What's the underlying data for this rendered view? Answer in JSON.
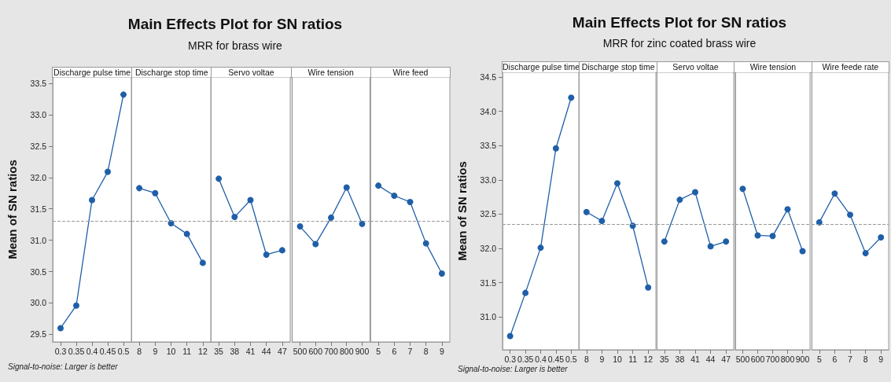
{
  "chart_data": [
    {
      "type": "other",
      "title": "Main Effects Plot for SN ratios",
      "subtitle": "MRR for brass wire"
    },
    {
      "type": "line",
      "xlabel": "Discharge pulse time",
      "ylabel": "Mean of SN ratios",
      "annotations": [
        "Signal-to-noise: Larger is better"
      ],
      "categories": [
        "0.3",
        "0.35",
        "0.4",
        "0.45",
        "0.5"
      ],
      "values": [
        29.6,
        29.96,
        31.64,
        32.09,
        33.32
      ],
      "color": "#1f5fa8",
      "ylim": [
        29.38,
        33.6
      ],
      "yticks": [
        29.5,
        {
          "value": 30,
          "label": "30.0"
        },
        30.5,
        {
          "value": 31,
          "label": "31.0"
        },
        31.5,
        {
          "value": 32,
          "label": "32.0"
        },
        32.5,
        {
          "value": 33,
          "label": "33.0"
        },
        33.5
      ],
      "marker": "circle",
      "line_style": "solid",
      "ref_lines": [
        {
          "axis": "y",
          "value": 31.3,
          "color": "#999999",
          "line_style": "dashed"
        }
      ]
    },
    {
      "type": "line",
      "xlabel": "Discharge stop time",
      "categories": [
        "8",
        "9",
        "10",
        "11",
        "12"
      ],
      "values": [
        31.83,
        31.75,
        31.27,
        31.1,
        30.64
      ],
      "color": "#1f5fa8",
      "ylim": [
        29.38,
        33.6
      ],
      "tick_labels": "x",
      "marker": "circle",
      "line_style": "solid",
      "ref_lines": [
        {
          "axis": "y",
          "value": 31.3,
          "color": "#999999",
          "line_style": "dashed"
        }
      ]
    },
    {
      "type": "line",
      "xlabel": "Servo voltae",
      "categories": [
        "35",
        "38",
        "41",
        "44",
        "47"
      ],
      "values": [
        31.98,
        31.37,
        31.64,
        30.77,
        30.84
      ],
      "color": "#1f5fa8",
      "ylim": [
        29.38,
        33.6
      ],
      "tick_labels": "x",
      "marker": "circle",
      "line_style": "solid",
      "ref_lines": [
        {
          "axis": "y",
          "value": 31.3,
          "color": "#999999",
          "line_style": "dashed"
        }
      ]
    },
    {
      "type": "line",
      "xlabel": "Wire tension",
      "categories": [
        "500",
        "600",
        "700",
        "800",
        "900"
      ],
      "values": [
        31.22,
        30.94,
        31.36,
        31.84,
        31.26
      ],
      "color": "#1f5fa8",
      "ylim": [
        29.38,
        33.6
      ],
      "tick_labels": "x",
      "marker": "circle",
      "line_style": "solid",
      "ref_lines": [
        {
          "axis": "y",
          "value": 31.3,
          "color": "#999999",
          "line_style": "dashed"
        }
      ]
    },
    {
      "type": "line",
      "xlabel": "Wire feed",
      "categories": [
        "5",
        "6",
        "7",
        "8",
        "9"
      ],
      "values": [
        31.87,
        31.71,
        31.61,
        30.95,
        30.47
      ],
      "color": "#1f5fa8",
      "ylim": [
        29.38,
        33.6
      ],
      "tick_labels": "x",
      "marker": "circle",
      "line_style": "solid",
      "ref_lines": [
        {
          "axis": "y",
          "value": 31.3,
          "color": "#999999",
          "line_style": "dashed"
        }
      ]
    },
    {
      "type": "other",
      "title": "Main Effects Plot for SN ratios",
      "subtitle": "MRR for zinc coated brass wire"
    },
    {
      "type": "line",
      "xlabel": "Discharge pulse time",
      "ylabel": "Mean of SN ratios",
      "annotations": [
        "Signal-to-noise: Larger is better"
      ],
      "categories": [
        "0.3",
        "0.35",
        "0.4",
        "0.45",
        "0.5"
      ],
      "values": [
        30.72,
        31.35,
        32.01,
        33.46,
        34.2
      ],
      "color": "#1f5fa8",
      "ylim": [
        30.52,
        34.57
      ],
      "yticks": [
        {
          "value": 31,
          "label": "31.0"
        },
        31.5,
        {
          "value": 32,
          "label": "32.0"
        },
        32.5,
        {
          "value": 33,
          "label": "33.0"
        },
        33.5,
        {
          "value": 34,
          "label": "34.0"
        },
        34.5
      ],
      "marker": "circle",
      "line_style": "solid",
      "ref_lines": [
        {
          "axis": "y",
          "value": 32.35,
          "color": "#999999",
          "line_style": "dashed"
        }
      ]
    },
    {
      "type": "line",
      "xlabel": "Discharge stop time",
      "categories": [
        "8",
        "9",
        "10",
        "11",
        "12"
      ],
      "values": [
        32.53,
        32.4,
        32.95,
        32.33,
        31.43
      ],
      "color": "#1f5fa8",
      "ylim": [
        30.52,
        34.57
      ],
      "tick_labels": "x",
      "marker": "circle",
      "line_style": "solid",
      "ref_lines": [
        {
          "axis": "y",
          "value": 32.35,
          "color": "#999999",
          "line_style": "dashed"
        }
      ]
    },
    {
      "type": "line",
      "xlabel": "Servo voltae",
      "categories": [
        "35",
        "38",
        "41",
        "44",
        "47"
      ],
      "values": [
        32.1,
        32.71,
        32.82,
        32.03,
        32.1
      ],
      "color": "#1f5fa8",
      "ylim": [
        30.52,
        34.57
      ],
      "tick_labels": "x",
      "marker": "circle",
      "line_style": "solid",
      "ref_lines": [
        {
          "axis": "y",
          "value": 32.35,
          "color": "#999999",
          "line_style": "dashed"
        }
      ]
    },
    {
      "type": "line",
      "xlabel": "Wire tension",
      "categories": [
        "500",
        "600",
        "700",
        "800",
        "900"
      ],
      "values": [
        32.87,
        32.19,
        32.18,
        32.57,
        31.96
      ],
      "color": "#1f5fa8",
      "ylim": [
        30.52,
        34.57
      ],
      "tick_labels": "x",
      "marker": "circle",
      "line_style": "solid",
      "ref_lines": [
        {
          "axis": "y",
          "value": 32.35,
          "color": "#999999",
          "line_style": "dashed"
        }
      ]
    },
    {
      "type": "line",
      "xlabel": "Wire feede rate",
      "categories": [
        "5",
        "6",
        "7",
        "8",
        "9"
      ],
      "values": [
        32.38,
        32.8,
        32.49,
        31.93,
        32.16
      ],
      "color": "#1f5fa8",
      "ylim": [
        30.52,
        34.57
      ],
      "tick_labels": "x",
      "marker": "circle",
      "line_style": "solid",
      "ref_lines": [
        {
          "axis": "y",
          "value": 32.35,
          "color": "#999999",
          "line_style": "dashed"
        }
      ]
    }
  ]
}
